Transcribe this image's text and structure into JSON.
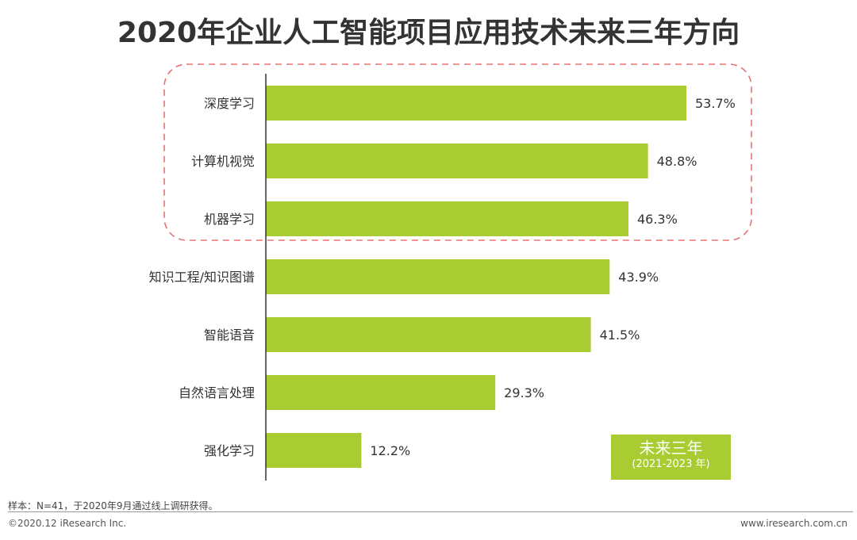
{
  "title": "2020年企业人工智能项目应用技术未来三年方向",
  "legend": {
    "line1": "未来三年",
    "line2": "(2021-2023 年)",
    "color": "#a8cc32"
  },
  "note": "样本：N=41，于2020年9月通过线上调研获得。",
  "copyright": "©2020.12 iResearch Inc.",
  "website": "www.iresearch.com.cn",
  "colors": {
    "bar": "#a8cc32",
    "highlight": "#e57373",
    "axis": "#333333"
  },
  "chart_data": {
    "type": "bar",
    "orientation": "horizontal",
    "categories": [
      "深度学习",
      "计算机视觉",
      "机器学习",
      "知识工程/知识图谱",
      "智能语音",
      "自然语言处理",
      "强化学习"
    ],
    "values": [
      53.7,
      48.8,
      46.3,
      43.9,
      41.5,
      29.3,
      12.2
    ],
    "value_labels": [
      "53.7%",
      "48.8%",
      "46.3%",
      "43.9%",
      "41.5%",
      "29.3%",
      "12.2%"
    ],
    "unit": "%",
    "xlim": [
      0,
      60
    ],
    "highlighted_categories": [
      "深度学习",
      "计算机视觉",
      "机器学习"
    ],
    "grid": false
  }
}
